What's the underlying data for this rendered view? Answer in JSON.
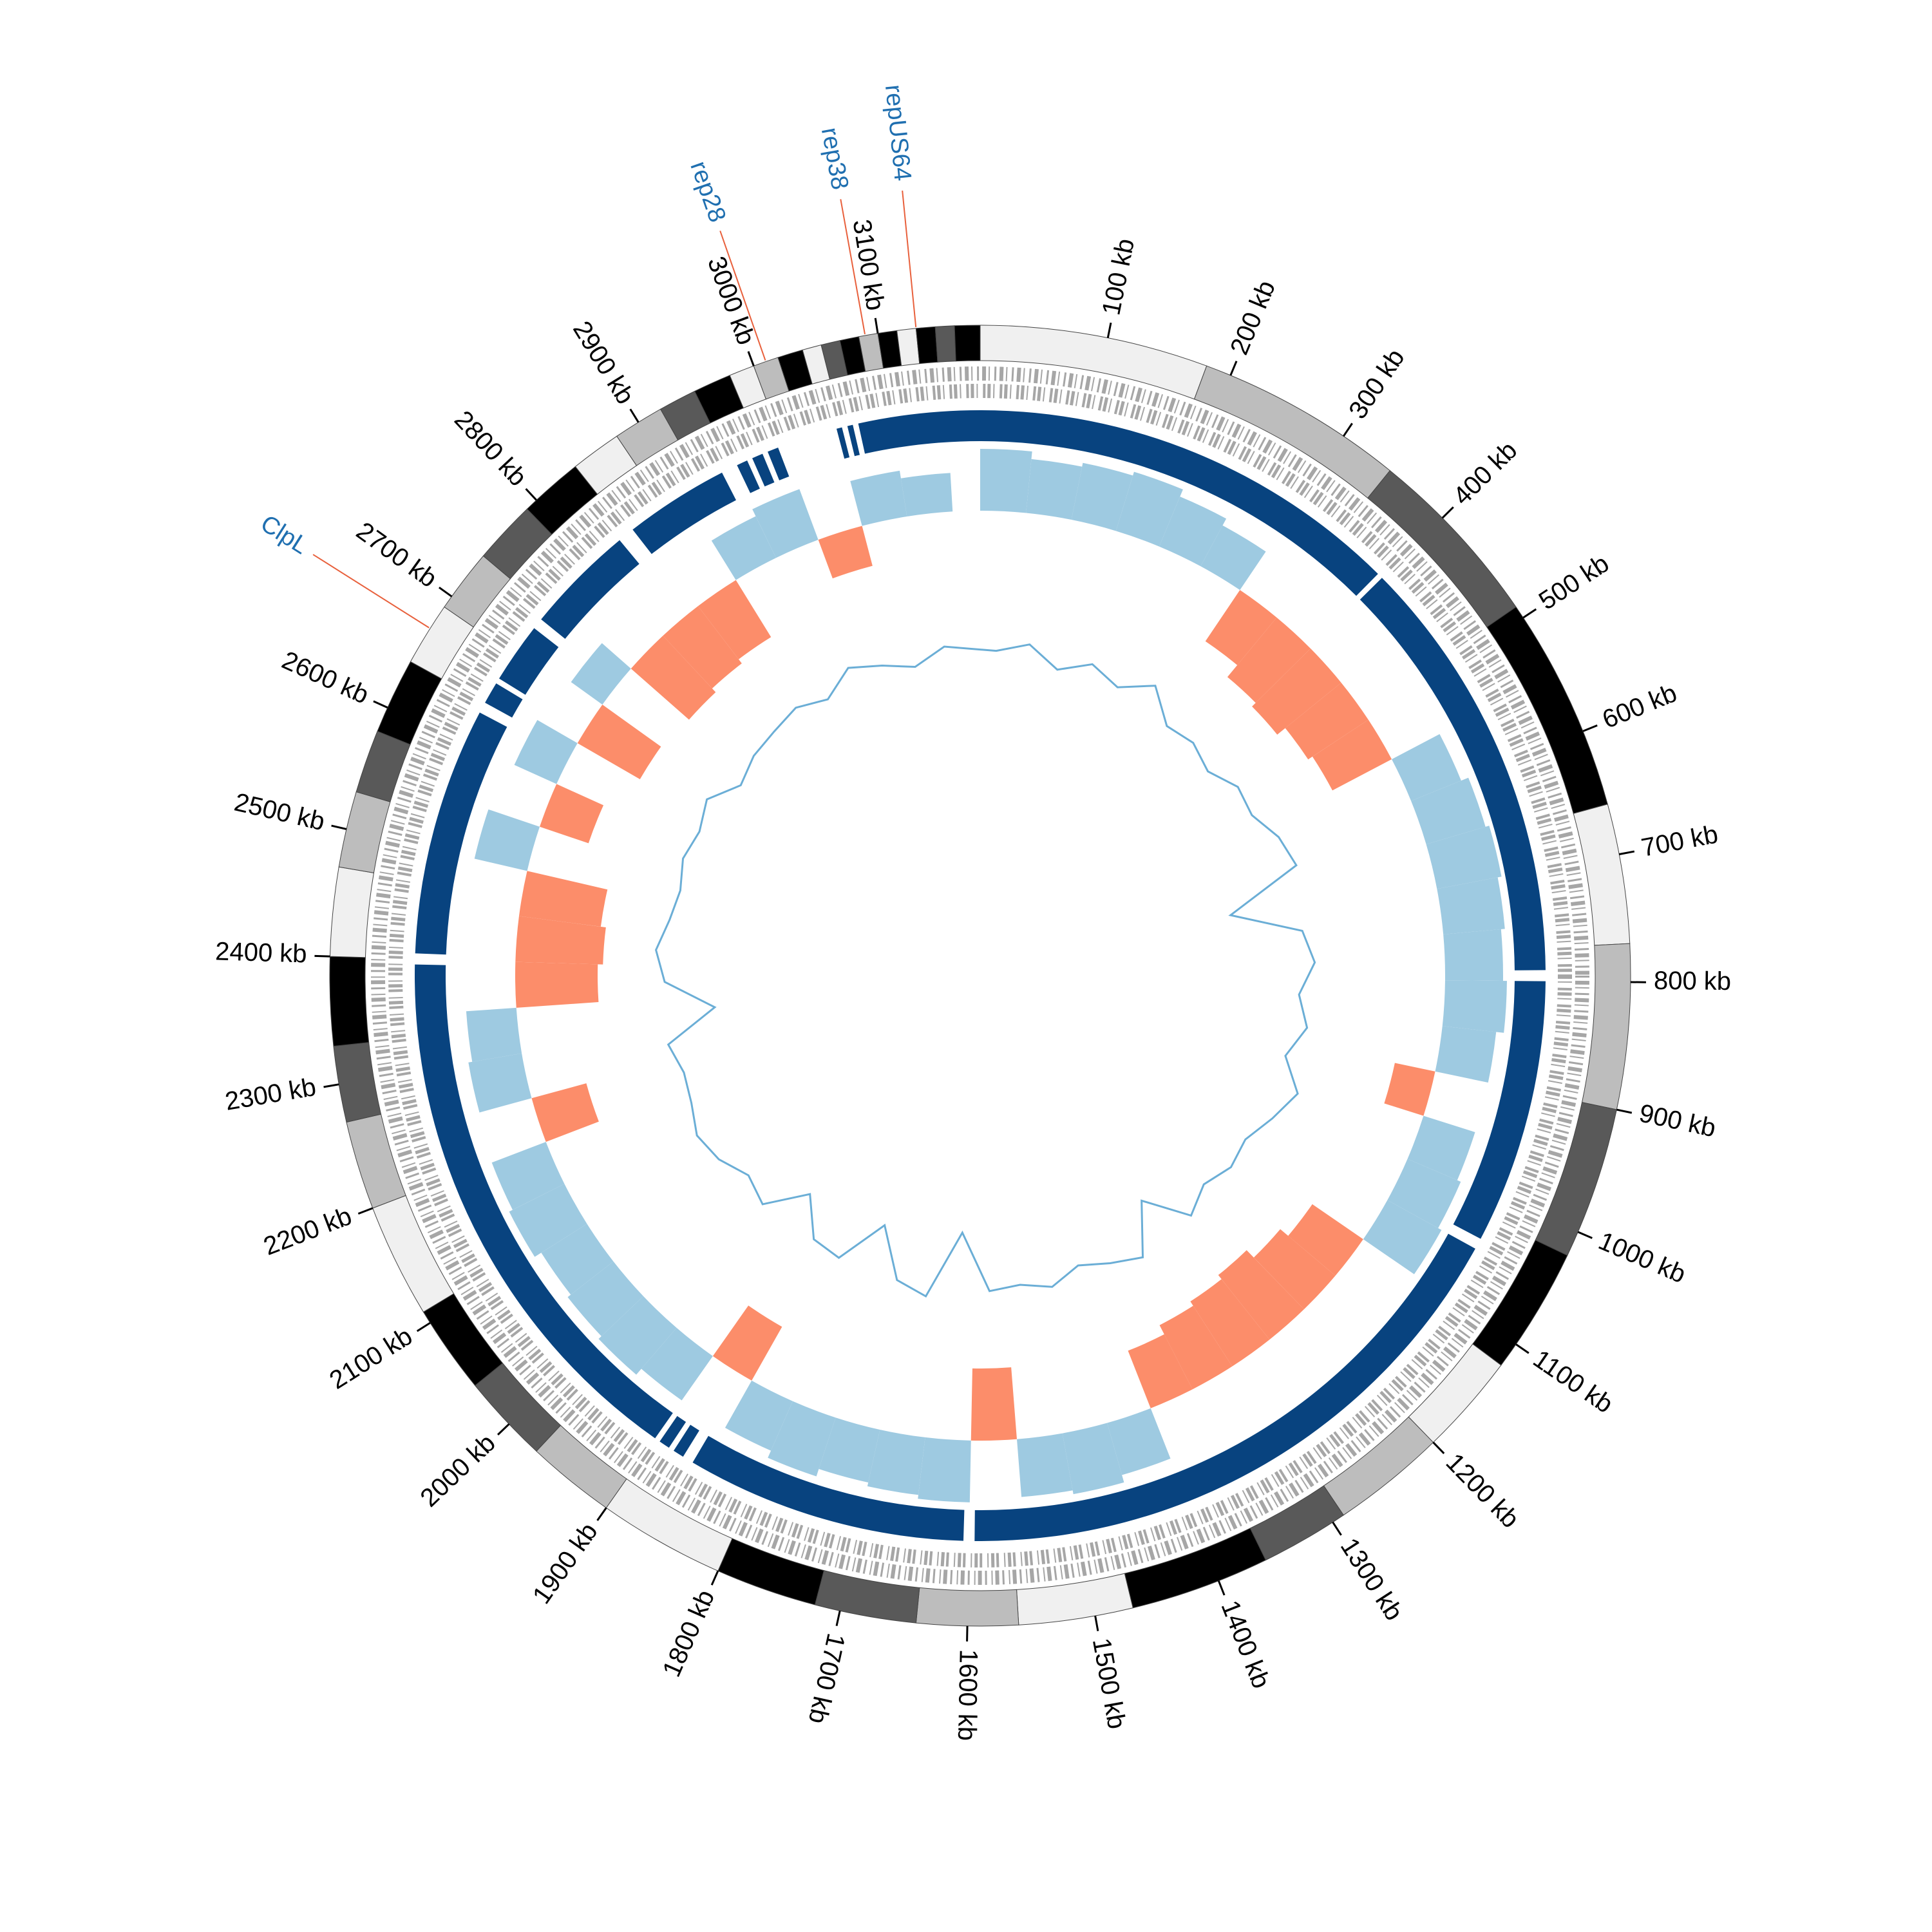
{
  "chart_data": {
    "type": "circos",
    "xlim": [
      0,
      3180
    ],
    "xticks": [
      {
        "value": 100,
        "label": "100 kb"
      },
      {
        "value": 200,
        "label": "200 kb"
      },
      {
        "value": 300,
        "label": "300 kb"
      },
      {
        "value": 400,
        "label": "400 kb"
      },
      {
        "value": 500,
        "label": "500 kb"
      },
      {
        "value": 600,
        "label": "600 kb"
      },
      {
        "value": 700,
        "label": "700 kb"
      },
      {
        "value": 800,
        "label": "800 kb"
      },
      {
        "value": 900,
        "label": "900 kb"
      },
      {
        "value": 1000,
        "label": "1000 kb"
      },
      {
        "value": 1100,
        "label": "1100 kb"
      },
      {
        "value": 1200,
        "label": "1200 kb"
      },
      {
        "value": 1300,
        "label": "1300 kb"
      },
      {
        "value": 1400,
        "label": "1400 kb"
      },
      {
        "value": 1500,
        "label": "1500 kb"
      },
      {
        "value": 1600,
        "label": "1600 kb"
      },
      {
        "value": 1700,
        "label": "1700 kb"
      },
      {
        "value": 1800,
        "label": "1800 kb"
      },
      {
        "value": 1900,
        "label": "1900 kb"
      },
      {
        "value": 2000,
        "label": "2000 kb"
      },
      {
        "value": 2100,
        "label": "2100 kb"
      },
      {
        "value": 2200,
        "label": "2200 kb"
      },
      {
        "value": 2300,
        "label": "2300 kb"
      },
      {
        "value": 2400,
        "label": "2400 kb"
      },
      {
        "value": 2500,
        "label": "2500 kb"
      },
      {
        "value": 2600,
        "label": "2600 kb"
      },
      {
        "value": 2700,
        "label": "2700 kb"
      },
      {
        "value": 2800,
        "label": "2800 kb"
      },
      {
        "value": 2900,
        "label": "2900 kb"
      },
      {
        "value": 3000,
        "label": "3000 kb"
      },
      {
        "value": 3100,
        "label": "3100 kb"
      }
    ],
    "annotations": [
      {
        "label": "rep28",
        "position": 3010
      },
      {
        "label": "rep38",
        "position": 3090
      },
      {
        "label": "repUS64",
        "position": 3130
      },
      {
        "label": "ClpL",
        "position": 2670
      }
    ],
    "bands": [
      [
        0,
        180,
        "#f0f0f0"
      ],
      [
        180,
        345,
        "#bdbdbd"
      ],
      [
        345,
        490,
        "#595959"
      ],
      [
        490,
        660,
        "#000000"
      ],
      [
        660,
        770,
        "#f0f0f0"
      ],
      [
        770,
        900,
        "#bdbdbd"
      ],
      [
        900,
        1020,
        "#595959"
      ],
      [
        1020,
        1120,
        "#000000"
      ],
      [
        1120,
        1200,
        "#f0f0f0"
      ],
      [
        1200,
        1290,
        "#bdbdbd"
      ],
      [
        1290,
        1360,
        "#595959"
      ],
      [
        1360,
        1470,
        "#000000"
      ],
      [
        1470,
        1560,
        "#f0f0f0"
      ],
      [
        1560,
        1640,
        "#bdbdbd"
      ],
      [
        1640,
        1720,
        "#595959"
      ],
      [
        1720,
        1800,
        "#000000"
      ],
      [
        1800,
        1900,
        "#f0f0f0"
      ],
      [
        1900,
        1970,
        "#bdbdbd"
      ],
      [
        1970,
        2040,
        "#595959"
      ],
      [
        2040,
        2110,
        "#000000"
      ],
      [
        2110,
        2200,
        "#f0f0f0"
      ],
      [
        2200,
        2270,
        "#bdbdbd"
      ],
      [
        2270,
        2330,
        "#595959"
      ],
      [
        2330,
        2400,
        "#000000"
      ],
      [
        2400,
        2470,
        "#f0f0f0"
      ],
      [
        2470,
        2530,
        "#bdbdbd"
      ],
      [
        2530,
        2580,
        "#595959"
      ],
      [
        2580,
        2640,
        "#000000"
      ],
      [
        2640,
        2690,
        "#f0f0f0"
      ],
      [
        2690,
        2740,
        "#bdbdbd"
      ],
      [
        2740,
        2790,
        "#595959"
      ],
      [
        2790,
        2840,
        "#000000"
      ],
      [
        2840,
        2880,
        "#f0f0f0"
      ],
      [
        2880,
        2920,
        "#bdbdbd"
      ],
      [
        2920,
        2950,
        "#595959"
      ],
      [
        2950,
        2980,
        "#000000"
      ],
      [
        2980,
        3000,
        "#f0f0f0"
      ],
      [
        3000,
        3020,
        "#bdbdbd"
      ],
      [
        3020,
        3040,
        "#000000"
      ],
      [
        3040,
        3055,
        "#f0f0f0"
      ],
      [
        3055,
        3070,
        "#595959"
      ],
      [
        3070,
        3085,
        "#000000"
      ],
      [
        3085,
        3100,
        "#bdbdbd"
      ],
      [
        3100,
        3115,
        "#000000"
      ],
      [
        3115,
        3130,
        "#f0f0f0"
      ],
      [
        3130,
        3145,
        "#000000"
      ],
      [
        3145,
        3160,
        "#595959"
      ],
      [
        3160,
        3180,
        "#000000"
      ]
    ],
    "contigs": [
      [
        0,
        395
      ],
      [
        400,
        790
      ],
      [
        800,
        1040
      ],
      [
        1050,
        1595
      ],
      [
        1605,
        1860
      ],
      [
        1870,
        1880
      ],
      [
        1885,
        1895
      ],
      [
        1900,
        2395
      ],
      [
        2405,
        2630
      ],
      [
        2640,
        2660
      ],
      [
        2665,
        2720
      ],
      [
        2730,
        2830
      ],
      [
        2845,
        2940
      ],
      [
        2955,
        2965
      ],
      [
        2970,
        2980
      ],
      [
        2985,
        2995
      ],
      [
        3050,
        3055
      ],
      [
        3060,
        3065
      ],
      [
        3070,
        3180
      ]
    ],
    "bins": [
      0,
      50,
      100,
      150,
      200,
      250,
      300,
      350,
      400,
      450,
      500,
      550,
      600,
      650,
      700,
      750,
      800,
      850,
      900,
      950,
      1000,
      1050,
      1100,
      1150,
      1200,
      1250,
      1300,
      1350,
      1400,
      1450,
      1500,
      1550,
      1600,
      1650,
      1700,
      1750,
      1800,
      1850,
      1900,
      1950,
      2000,
      2050,
      2100,
      2150,
      2200,
      2250,
      2300,
      2350,
      2400,
      2450,
      2500,
      2550,
      2600,
      2650,
      2700,
      2750,
      2800,
      2850,
      2900,
      2950,
      3000,
      3050,
      3100,
      3150
    ],
    "coverage": [
      0.8,
      0.7,
      0.75,
      0.8,
      0.7,
      0.6,
      -0.6,
      -0.75,
      -0.8,
      -0.7,
      -0.65,
      0.7,
      0.8,
      0.85,
      0.8,
      0.75,
      0.8,
      0.7,
      -0.4,
      0.7,
      0.75,
      0.8,
      -0.6,
      -0.7,
      -0.8,
      -0.75,
      -0.7,
      -0.6,
      0.7,
      0.8,
      0.75,
      -0.7,
      0.8,
      0.75,
      0.7,
      0.8,
      0.7,
      -0.6,
      0.7,
      0.8,
      0.75,
      0.7,
      0.8,
      0.75,
      -0.55,
      0.7,
      0.65,
      -0.8,
      -0.85,
      -0.8,
      0.7,
      -0.5,
      0.6,
      -0.7,
      0.5,
      -0.75,
      -0.7,
      -0.65,
      0.6,
      0.7,
      -0.4,
      0.6,
      0.5
    ],
    "gc": [
      0.55,
      0.6,
      0.5,
      0.58,
      0.52,
      0.62,
      0.48,
      0.5,
      0.45,
      0.52,
      0.5,
      0.57,
      0.6,
      0.2,
      0.55,
      0.6,
      0.52,
      0.58,
      0.5,
      0.62,
      0.55,
      0.48,
      0.5,
      0.45,
      0.52,
      0.3,
      0.55,
      0.5,
      0.45,
      0.52,
      0.48,
      0.5,
      0.2,
      0.55,
      0.5,
      0.25,
      0.5,
      0.48,
      0.3,
      0.5,
      0.45,
      0.52,
      0.55,
      0.5,
      0.48,
      0.52,
      0.25,
      0.5,
      0.55,
      0.5,
      0.48,
      0.52,
      0.5,
      0.55,
      0.45,
      0.5,
      0.52,
      0.55,
      0.5,
      0.6,
      0.55,
      0.5,
      0.58
    ],
    "colors": {
      "positive": "#9ecae1",
      "negative": "#fc8d6a",
      "contig": "#08437f",
      "gc": "#6baed6",
      "annotation_line": "#e8603c",
      "annotation_text": "#1f6fb0"
    }
  }
}
